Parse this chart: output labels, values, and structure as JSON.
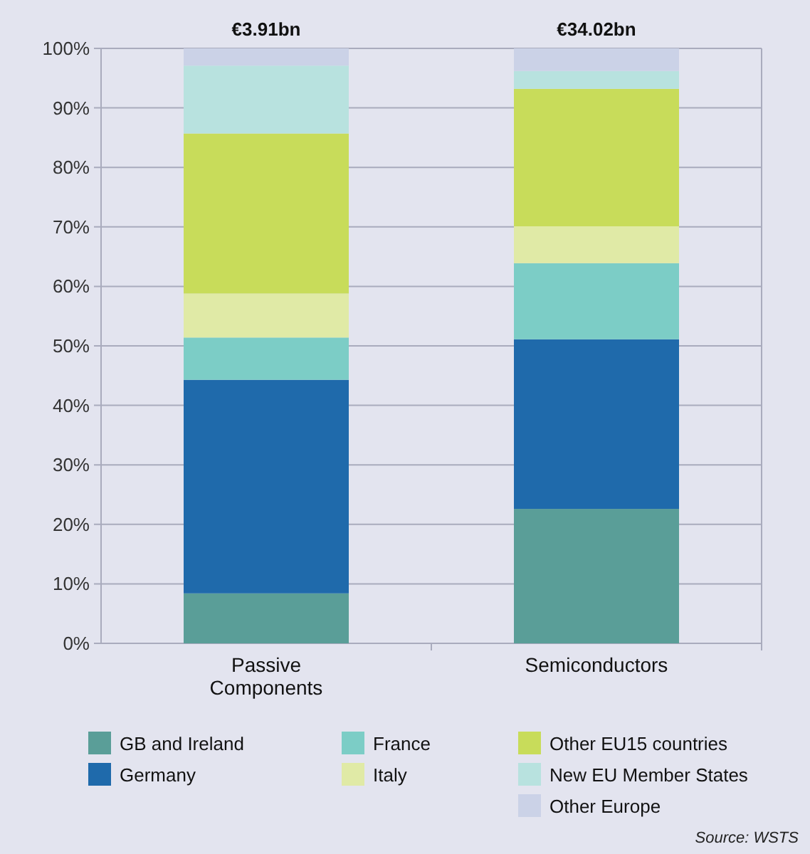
{
  "chart_data": {
    "type": "bar",
    "stacked": true,
    "categories": [
      "Passive Components",
      "Semiconductors"
    ],
    "series": [
      {
        "name": "GB and Ireland",
        "color": "#5a9e98",
        "values": [
          8.4,
          22.6
        ]
      },
      {
        "name": "Germany",
        "color": "#1f6aab",
        "values": [
          35.9,
          28.5
        ]
      },
      {
        "name": "France",
        "color": "#7ccdc6",
        "values": [
          7.1,
          12.8
        ]
      },
      {
        "name": "Italy",
        "color": "#e0eaa6",
        "values": [
          7.4,
          6.2
        ]
      },
      {
        "name": "Other EU15 countries",
        "color": "#c8dc5a",
        "values": [
          26.9,
          23.1
        ]
      },
      {
        "name": "New EU Member States",
        "color": "#b8e2df",
        "values": [
          11.4,
          3.0
        ]
      },
      {
        "name": "Other Europe",
        "color": "#cbd2e7",
        "values": [
          2.9,
          3.8
        ]
      }
    ],
    "ylim": [
      0,
      100
    ],
    "yticks": [
      {
        "value": 0,
        "label": "0%"
      },
      {
        "value": 10,
        "label": "10%"
      },
      {
        "value": 20,
        "label": "20%"
      },
      {
        "value": 30,
        "label": "30%"
      },
      {
        "value": 40,
        "label": "40%"
      },
      {
        "value": 50,
        "label": "50%"
      },
      {
        "value": 60,
        "label": "60%"
      },
      {
        "value": 70,
        "label": "70%"
      },
      {
        "value": 80,
        "label": "80%"
      },
      {
        "value": 90,
        "label": "90%"
      },
      {
        "value": 100,
        "label": "100%"
      }
    ],
    "grid": "y",
    "legend": "bottom",
    "annotations": [
      {
        "text": "€3.91bn",
        "x": "Passive Components",
        "y": 100
      },
      {
        "text": "€34.02bn",
        "x": "Semiconductors",
        "y": 100
      },
      "Source: WSTS"
    ]
  }
}
